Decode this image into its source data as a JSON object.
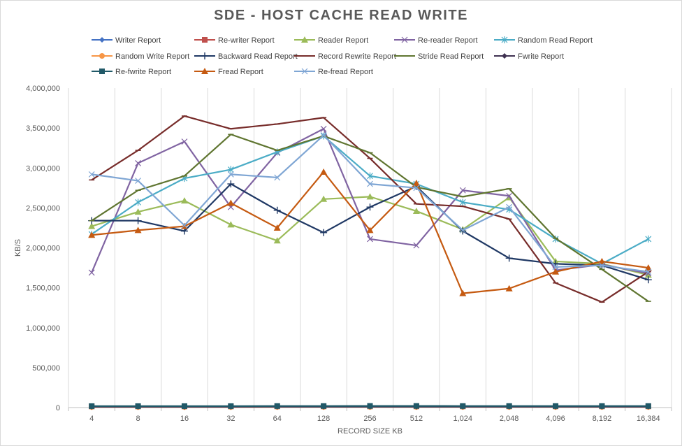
{
  "chart_data": {
    "type": "line",
    "title": "SDE - HOST CACHE READ WRITE",
    "xlabel": "RECORD SIZE KB",
    "ylabel": "KB/S",
    "ylim": [
      0,
      4000000
    ],
    "yticks": [
      0,
      500000,
      1000000,
      1500000,
      2000000,
      2500000,
      3000000,
      3500000,
      4000000
    ],
    "ytick_labels": [
      "0",
      "500,000",
      "1,000,000",
      "1,500,000",
      "2,000,000",
      "2,500,000",
      "3,000,000",
      "3,500,000",
      "4,000,000"
    ],
    "categories": [
      "4",
      "8",
      "16",
      "32",
      "64",
      "128",
      "256",
      "512",
      "1,024",
      "2,048",
      "4,096",
      "8,192",
      "16,384"
    ],
    "grid": "vertical",
    "legend_position": "top",
    "series": [
      {
        "name": "Writer Report",
        "color": "#4472C4",
        "marker": "diamond",
        "values": [
          12000,
          12000,
          12000,
          12000,
          13000,
          13000,
          13000,
          14000,
          13000,
          13000,
          14000,
          14000,
          14000
        ]
      },
      {
        "name": "Re-writer Report",
        "color": "#C0504D",
        "marker": "square",
        "values": [
          14000,
          14000,
          14000,
          14000,
          15000,
          15000,
          15000,
          15000,
          15000,
          15000,
          15000,
          15000,
          15000
        ]
      },
      {
        "name": "Reader Report",
        "color": "#9BBB59",
        "marker": "triangle",
        "values": [
          2270000,
          2450000,
          2590000,
          2290000,
          2090000,
          2610000,
          2640000,
          2460000,
          2230000,
          2630000,
          1830000,
          1800000,
          1660000
        ]
      },
      {
        "name": "Re-reader Report",
        "color": "#8064A2",
        "marker": "x",
        "values": [
          1690000,
          3060000,
          3330000,
          2510000,
          3190000,
          3490000,
          2110000,
          2030000,
          2720000,
          2650000,
          1720000,
          1790000,
          1680000
        ]
      },
      {
        "name": "Random Read Report",
        "color": "#4BACC6",
        "marker": "star",
        "values": [
          2170000,
          2570000,
          2870000,
          2980000,
          3200000,
          3400000,
          2900000,
          2800000,
          2570000,
          2480000,
          2110000,
          1800000,
          2110000
        ]
      },
      {
        "name": "Random Write Report",
        "color": "#F79646",
        "marker": "circle",
        "values": [
          6000,
          6000,
          6000,
          6000,
          7000,
          7000,
          7000,
          7000,
          7000,
          7000,
          7000,
          7000,
          7000
        ]
      },
      {
        "name": "Backward Read Report",
        "color": "#1F3864",
        "marker": "plus",
        "values": [
          2340000,
          2340000,
          2210000,
          2800000,
          2470000,
          2190000,
          2510000,
          2770000,
          2210000,
          1870000,
          1800000,
          1780000,
          1600000
        ]
      },
      {
        "name": "Record Rewrite Report",
        "color": "#772C2A",
        "marker": "dash",
        "values": [
          2850000,
          3220000,
          3650000,
          3490000,
          3550000,
          3630000,
          3120000,
          2550000,
          2520000,
          2360000,
          1560000,
          1320000,
          1700000
        ]
      },
      {
        "name": "Stride Read Report",
        "color": "#5F7530",
        "marker": "dash",
        "values": [
          2340000,
          2720000,
          2900000,
          3420000,
          3220000,
          3400000,
          3190000,
          2760000,
          2640000,
          2740000,
          2120000,
          1730000,
          1330000
        ]
      },
      {
        "name": "Fwrite Report",
        "color": "#3F3151",
        "marker": "diamond",
        "values": [
          9000,
          9000,
          9000,
          9000,
          10000,
          10000,
          10000,
          10000,
          10000,
          10000,
          10000,
          10000,
          10000
        ]
      },
      {
        "name": "Re-fwrite Report",
        "color": "#215968",
        "marker": "square",
        "values": [
          18000,
          18000,
          18000,
          18000,
          19000,
          19000,
          20000,
          20000,
          19000,
          19000,
          19000,
          19000,
          19000
        ]
      },
      {
        "name": "Fread Report",
        "color": "#C55A11",
        "marker": "triangle",
        "values": [
          2160000,
          2220000,
          2270000,
          2560000,
          2250000,
          2950000,
          2220000,
          2810000,
          1430000,
          1490000,
          1700000,
          1830000,
          1750000
        ]
      },
      {
        "name": "Re-fread Report",
        "color": "#7FA6D4",
        "marker": "x",
        "values": [
          2920000,
          2840000,
          2280000,
          2920000,
          2880000,
          3410000,
          2800000,
          2750000,
          2220000,
          2510000,
          1760000,
          1780000,
          1700000
        ]
      }
    ]
  }
}
